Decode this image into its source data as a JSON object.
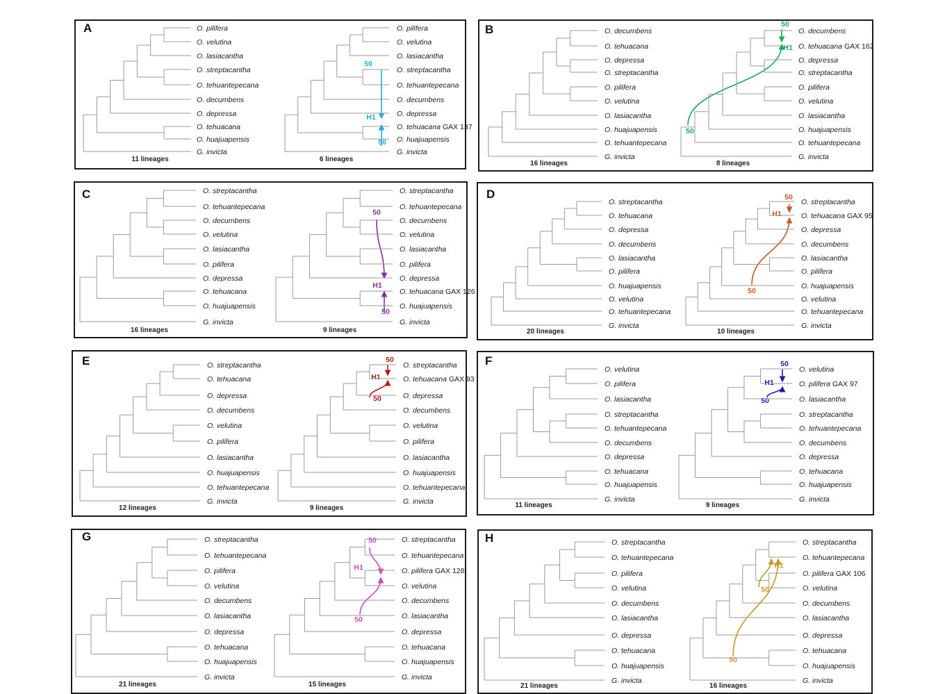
{
  "panels": [
    {
      "label": "A",
      "left": {
        "taxa": [
          "O. pilifera",
          "O. velutina",
          "O. lasiacantha",
          "O. streptacantha",
          "O. tehuantepecana",
          "O. decumbens",
          "O. depressa",
          "O. tehuacana",
          "O. huajuapensis",
          "G. invicta"
        ],
        "lineages": "11 lineages"
      },
      "right": {
        "taxa": [
          "O. pilifera",
          "O. velutina",
          "O. lasiacantha",
          "O. streptacantha",
          "O. tehuantepecana",
          "O. decumbens",
          "O. depressa",
          "O. tehuacana GAX 137",
          "O. huajuapensis",
          "G. invicta"
        ],
        "lineages": "6 lineages"
      },
      "hybrid": {
        "color": "#1eaadf",
        "node_label": "H1",
        "parent_labels": [
          "50",
          "50"
        ]
      }
    },
    {
      "label": "B",
      "left": {
        "taxa": [
          "O. decumbens",
          "O. tehuacana",
          "O. depressa",
          "O. streptacantha",
          "O. pilifera",
          "O. velutina",
          "O. lasiacantha",
          "O. huajuapensis",
          "O. tehuantepecana",
          "G. invicta"
        ],
        "lineages": "16 lineages"
      },
      "right": {
        "taxa": [
          "O. decumbens",
          "O. tehuacana GAX 162",
          "O. depressa",
          "O. streptacantha",
          "O. pilifera",
          "O. velutina",
          "O. lasiacantha",
          "O. huajuapensis",
          "O. tehuantepecana",
          "G. invicta"
        ],
        "lineages": "8 lineages"
      },
      "hybrid": {
        "color": "#1ba95a",
        "node_label": "H1",
        "parent_labels": [
          "50",
          "50"
        ]
      }
    },
    {
      "label": "C",
      "left": {
        "taxa": [
          "O. streptacantha",
          "O. tehuantepecana",
          "O. decumbens",
          "O. velutina",
          "O. lasiacantha",
          "O. pilifera",
          "O. depressa",
          "O. tehuacana",
          "O. huajuapensis",
          "G. invicta"
        ],
        "lineages": "16 lineages"
      },
      "right": {
        "taxa": [
          "O. streptacantha",
          "O. tehuantepecana",
          "O. decumbens",
          "O. velutina",
          "O. lasiacantha",
          "O. pilifera",
          "O. depressa",
          "O. tehuacana GAX 126",
          "O. huajuapensis",
          "G. invicta"
        ],
        "lineages": "9 lineages"
      },
      "hybrid": {
        "color": "#7a3399",
        "node_label": "H1",
        "parent_labels": [
          "50",
          "50"
        ]
      }
    },
    {
      "label": "D",
      "left": {
        "taxa": [
          "O. streptacantha",
          "O. tehuacana",
          "O. depressa",
          "O. decumbens",
          "O. lasiacantha",
          "O. pilifera",
          "O. huajuapensis",
          "O. velutina",
          "O. tehuantepecana",
          "G. invicta"
        ],
        "lineages": "20 lineages"
      },
      "right": {
        "taxa": [
          "O. streptacantha",
          "O. tehuacana GAX 95",
          "O. depressa",
          "O. decumbens",
          "O. lasiacantha",
          "O. pilifera",
          "O. huajuapensis",
          "O. velutina",
          "O. tehuantepecana",
          "G. invicta"
        ],
        "lineages": "10 lineages"
      },
      "hybrid": {
        "color": "#c8581e",
        "node_label": "H1",
        "parent_labels": [
          "50",
          "50"
        ]
      }
    },
    {
      "label": "E",
      "left": {
        "taxa": [
          "O. streptacantha",
          "O. tehuacana",
          "O. depressa",
          "O. decumbens",
          "O. velutina",
          "O. pilifera",
          "O. lasiacantha",
          "O. huajuapensis",
          "O. tehuantepecana",
          "G. invicta"
        ],
        "lineages": "12 lineages"
      },
      "right": {
        "taxa": [
          "O. streptacantha",
          "O. tehuacana GAX 93",
          "O. depressa",
          "O. decumbens",
          "O. velutina",
          "O. pilifera",
          "O. lasiacantha",
          "O. huajuapensis",
          "O. tehuantepecana",
          "G. invicta"
        ],
        "lineages": "9 lineages"
      },
      "hybrid": {
        "color": "#b51a1a",
        "node_label": "H1",
        "parent_labels": [
          "50",
          "50"
        ]
      }
    },
    {
      "label": "F",
      "left": {
        "taxa": [
          "O. velutina",
          "O. pilifera",
          "O. lasiacantha",
          "O. streptacantha",
          "O. tehuantepecana",
          "O. decumbens",
          "O. depressa",
          "O. tehuacana",
          "O. huajuapensis",
          "G. invicta"
        ],
        "lineages": "11 lineages"
      },
      "right": {
        "taxa": [
          "O. velutina",
          "O. pilifera GAX 97",
          "O. lasiacantha",
          "O. streptacantha",
          "O. tehuantepecana",
          "O. decumbens",
          "O. depressa",
          "O. tehuacana",
          "O. huajuapensis",
          "G. invicta"
        ],
        "lineages": "9 lineages"
      },
      "hybrid": {
        "color": "#1c1ca8",
        "node_label": "H1",
        "parent_labels": [
          "50",
          "50"
        ]
      }
    },
    {
      "label": "G",
      "left": {
        "taxa": [
          "O. streptacantha",
          "O. tehuantepecana",
          "O. pilifera",
          "O. velutina",
          "O. decumbens",
          "O. lasiacantha",
          "O. depressa",
          "O. tehuacana",
          "O. huajuapensis",
          "G. invicta"
        ],
        "lineages": "21 lineages"
      },
      "right": {
        "taxa": [
          "O. streptacantha",
          "O. tehuantepecana",
          "O. pilifera GAX 128",
          "O. velutina",
          "O. decumbens",
          "O. lasiacantha",
          "O. depressa",
          "O. tehuacana",
          "O. huajuapensis",
          "G. invicta"
        ],
        "lineages": "15 lineages"
      },
      "hybrid": {
        "color": "#c84bbf",
        "node_label": "H1",
        "parent_labels": [
          "50",
          "50"
        ]
      }
    },
    {
      "label": "H",
      "left": {
        "taxa": [
          "O. streptacantha",
          "O. tehuantepecana",
          "O. pilifera",
          "O. velutina",
          "O. decumbens",
          "O. lasiacantha",
          "O. depressa",
          "O. tehuacana",
          "O. huajuapensis",
          "G. invicta"
        ],
        "lineages": "21 lineages"
      },
      "right": {
        "taxa": [
          "O. streptacantha",
          "O. tehuantepecana",
          "O. pilifera GAX 106",
          "O. velutina",
          "O. decumbens",
          "O. lasiacantha",
          "O. depressa",
          "O. tehuacana",
          "O. huajuapensis",
          "G. invicta"
        ],
        "lineages": "16 lineages"
      },
      "hybrid": {
        "color": "#c9961e",
        "node_label": "H1",
        "parent_labels": [
          "50",
          "50"
        ]
      }
    }
  ]
}
